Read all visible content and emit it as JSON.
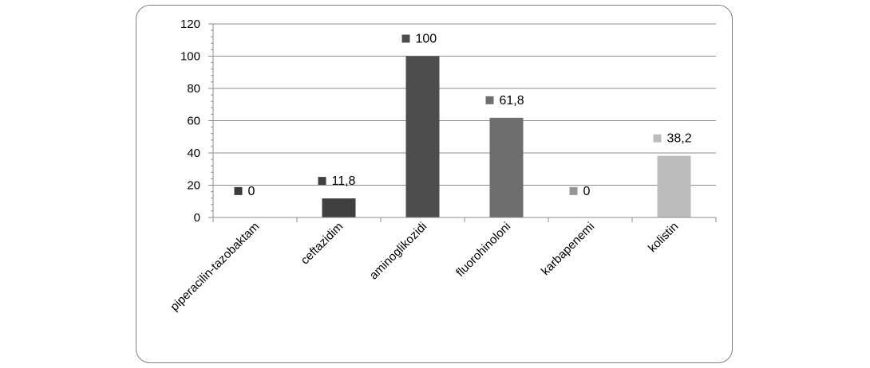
{
  "chart_data": {
    "type": "bar",
    "title": "",
    "xlabel": "",
    "ylabel": "",
    "ylim": [
      0,
      120
    ],
    "yticks": [
      0,
      20,
      40,
      60,
      80,
      100,
      120
    ],
    "grid": true,
    "legend": "none",
    "categories": [
      "piperacilin-tazobaktam",
      "ceftazidim",
      "aminoglikozidi",
      "fluorohinoloni",
      "karbapenemi",
      "kolistin"
    ],
    "values": [
      0,
      11.8,
      100,
      61.8,
      0,
      38.2
    ],
    "value_labels": [
      "0",
      "11,8",
      "100",
      "61,8",
      "0",
      "38,2"
    ],
    "colors": [
      "#3a3a3a",
      "#3f3f3f",
      "#4d4d4d",
      "#6e6e6e",
      "#969696",
      "#bcbcbc"
    ]
  }
}
